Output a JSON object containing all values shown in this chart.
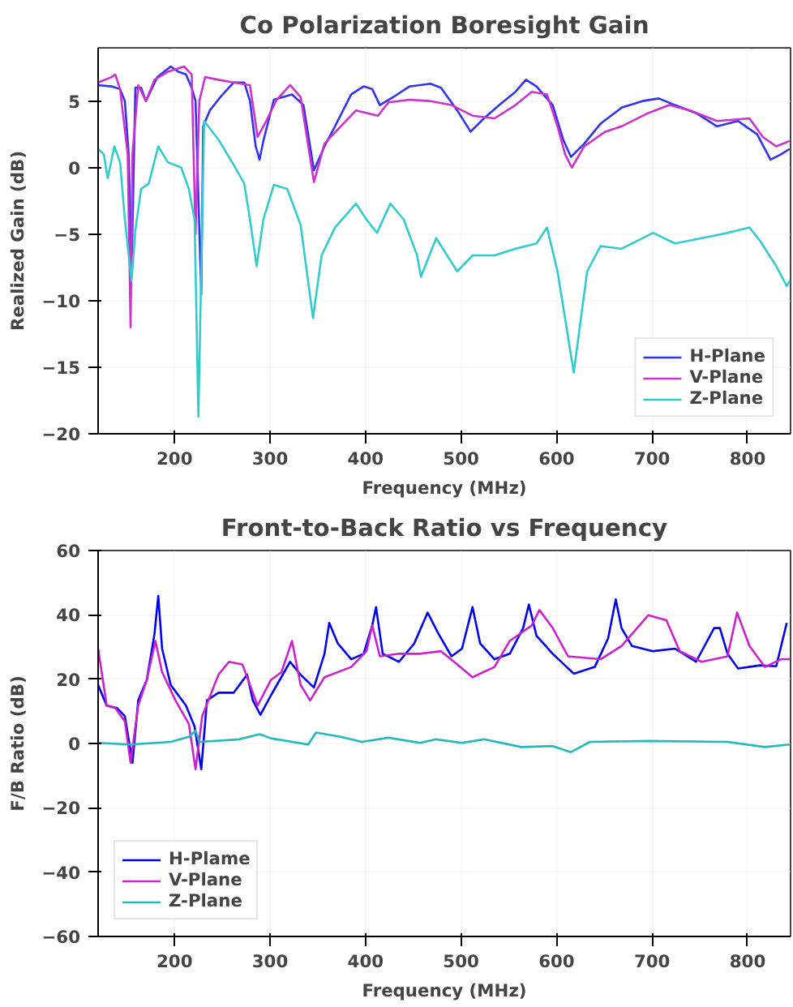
{
  "chart_data": [
    {
      "type": "line",
      "title": "Co Polarization Boresight Gain",
      "xlabel": "Frequency (MHz)",
      "ylabel": "Realized Gain (dB)",
      "xlim": [
        120,
        845
      ],
      "ylim": [
        -20,
        9
      ],
      "xticks": [
        200,
        300,
        400,
        500,
        600,
        700,
        800
      ],
      "yticks": [
        -20,
        -15,
        -10,
        -5,
        0,
        5
      ],
      "grid": true,
      "legend": "bottom right",
      "series": [
        {
          "name": "H-Plane",
          "color": "#3333ee",
          "x": [
            120,
            134,
            143,
            148,
            152,
            155,
            159,
            165,
            170,
            182,
            196,
            204,
            212,
            218,
            222,
            228,
            230,
            237,
            248,
            262,
            273,
            279,
            285,
            289,
            293,
            304,
            323,
            335,
            346,
            357,
            368,
            385,
            398,
            407,
            415,
            429,
            446,
            468,
            479,
            496,
            510,
            524,
            540,
            557,
            568,
            579,
            596,
            607,
            615,
            629,
            646,
            668,
            690,
            707,
            724,
            746,
            768,
            790,
            810,
            824,
            835,
            844
          ],
          "values": [
            6.2,
            6.1,
            5.9,
            5.0,
            1.0,
            -8.0,
            6.0,
            6.0,
            5.0,
            6.8,
            7.6,
            7.2,
            7.0,
            6.0,
            5.0,
            -9.5,
            3.1,
            4.3,
            5.3,
            6.4,
            6.4,
            5.0,
            1.6,
            0.6,
            2.0,
            5.1,
            5.5,
            4.7,
            -0.2,
            1.6,
            3.1,
            5.5,
            6.1,
            5.9,
            4.7,
            5.3,
            6.1,
            6.3,
            6.0,
            4.3,
            2.7,
            3.7,
            4.7,
            5.7,
            6.6,
            6.1,
            4.7,
            2.1,
            0.8,
            1.8,
            3.3,
            4.5,
            5.0,
            5.2,
            4.7,
            4.1,
            3.1,
            3.5,
            2.5,
            0.6,
            1.0,
            1.4
          ]
        },
        {
          "name": "V-Plane",
          "color": "#cc33cc",
          "x": [
            120,
            134,
            138,
            143,
            151,
            154,
            156,
            162,
            170,
            179,
            193,
            210,
            218,
            222,
            226,
            232,
            246,
            262,
            279,
            287,
            296,
            307,
            321,
            332,
            346,
            357,
            374,
            390,
            413,
            424,
            446,
            468,
            490,
            512,
            535,
            557,
            574,
            590,
            601,
            609,
            616,
            629,
            651,
            668,
            696,
            718,
            740,
            768,
            802,
            816,
            830,
            844
          ],
          "values": [
            6.4,
            6.8,
            7.0,
            5.9,
            1.0,
            -12.0,
            1.0,
            6.2,
            5.0,
            6.6,
            7.2,
            7.6,
            7.0,
            -5.0,
            5.0,
            6.8,
            6.6,
            6.4,
            6.2,
            2.3,
            3.5,
            5.1,
            6.2,
            5.3,
            -1.1,
            1.8,
            3.1,
            4.3,
            3.9,
            4.9,
            5.1,
            5.0,
            4.7,
            3.9,
            3.7,
            4.7,
            5.7,
            5.5,
            3.1,
            1.0,
            0.0,
            1.6,
            2.7,
            3.1,
            4.1,
            4.7,
            4.3,
            3.5,
            3.7,
            2.3,
            1.6,
            2.0
          ]
        },
        {
          "name": "Z-Plane",
          "color": "#33cccc",
          "x": [
            120,
            126,
            130,
            137,
            143,
            148,
            155,
            159,
            165,
            173,
            183,
            193,
            207,
            215,
            221,
            225,
            231,
            246,
            262,
            273,
            279,
            286,
            293,
            304,
            318,
            332,
            340,
            345,
            354,
            368,
            390,
            401,
            412,
            426,
            440,
            454,
            458,
            474,
            496,
            512,
            535,
            557,
            579,
            590,
            601,
            618,
            632,
            646,
            668,
            701,
            724,
            752,
            779,
            802,
            813,
            830,
            841,
            844
          ],
          "values": [
            1.4,
            1.0,
            -0.8,
            1.6,
            0.4,
            -3.9,
            -8.5,
            -4.7,
            -1.6,
            -1.2,
            1.6,
            0.4,
            0.0,
            -1.6,
            -3.9,
            -18.7,
            3.5,
            2.1,
            0.2,
            -1.2,
            -3.9,
            -7.4,
            -3.9,
            -1.3,
            -1.6,
            -4.3,
            -8.6,
            -11.3,
            -6.6,
            -4.5,
            -2.7,
            -3.9,
            -4.9,
            -2.7,
            -3.9,
            -6.6,
            -8.2,
            -5.3,
            -7.8,
            -6.6,
            -6.6,
            -6.1,
            -5.7,
            -4.5,
            -7.8,
            -15.4,
            -7.8,
            -5.9,
            -6.1,
            -4.9,
            -5.7,
            -5.3,
            -4.9,
            -4.5,
            -5.5,
            -7.4,
            -8.9,
            -8.5
          ]
        }
      ]
    },
    {
      "type": "line",
      "title": "Front-to-Back Ratio vs Frequency",
      "xlabel": "Frequency (MHz)",
      "ylabel": "F/B Ratio (dB)",
      "xlim": [
        120,
        845
      ],
      "ylim": [
        -60,
        60
      ],
      "xticks": [
        200,
        300,
        400,
        500,
        600,
        700,
        800
      ],
      "yticks": [
        -60,
        -40,
        -20,
        0,
        20,
        40,
        60
      ],
      "grid": true,
      "legend": "bottom left",
      "series": [
        {
          "name": "H-Plame",
          "color": "#0000ee",
          "x": [
            120,
            129,
            140,
            148,
            156,
            162,
            171,
            179,
            183,
            187,
            196,
            212,
            221,
            228,
            234,
            246,
            262,
            276,
            282,
            290,
            301,
            321,
            332,
            346,
            357,
            362,
            371,
            385,
            398,
            407,
            411,
            418,
            435,
            451,
            465,
            476,
            490,
            501,
            512,
            520,
            535,
            551,
            565,
            571,
            579,
            596,
            618,
            640,
            654,
            662,
            668,
            679,
            701,
            724,
            746,
            765,
            771,
            779,
            790,
            813,
            830,
            841
          ],
          "values": [
            18.2,
            11.8,
            11.0,
            8.5,
            -6.0,
            13.4,
            19.8,
            34.0,
            45.9,
            29.5,
            18.2,
            11.8,
            5.3,
            -8.0,
            13.4,
            15.8,
            15.8,
            21.4,
            13.4,
            8.9,
            15.0,
            25.4,
            21.4,
            17.4,
            27.9,
            37.5,
            31.1,
            26.2,
            27.9,
            36.7,
            42.4,
            27.9,
            25.4,
            31.1,
            40.7,
            34.3,
            27.1,
            29.5,
            42.4,
            31.1,
            26.2,
            27.9,
            35.9,
            43.2,
            33.5,
            27.9,
            21.7,
            23.8,
            32.7,
            44.8,
            35.9,
            30.3,
            28.7,
            29.5,
            25.4,
            35.9,
            35.9,
            27.9,
            23.3,
            24.3,
            24.0,
            37.5
          ]
        },
        {
          "name": "V-Plane",
          "color": "#cc22cc",
          "x": [
            120,
            129,
            138,
            148,
            154,
            162,
            171,
            180,
            187,
            201,
            215,
            222,
            229,
            246,
            257,
            271,
            287,
            301,
            312,
            323,
            332,
            342,
            357,
            385,
            401,
            407,
            415,
            435,
            457,
            479,
            496,
            512,
            535,
            551,
            574,
            582,
            596,
            612,
            646,
            668,
            696,
            715,
            729,
            752,
            779,
            789,
            802,
            818,
            835,
            844
          ],
          "values": [
            29.5,
            11.8,
            11.0,
            6.9,
            -6.0,
            11.8,
            19.8,
            31.9,
            22.2,
            13.4,
            6.1,
            -8.0,
            8.5,
            21.4,
            25.4,
            24.6,
            11.8,
            19.8,
            22.2,
            31.9,
            18.2,
            13.4,
            20.6,
            23.8,
            28.7,
            36.7,
            27.1,
            27.9,
            27.9,
            28.7,
            24.6,
            20.6,
            23.8,
            31.9,
            36.7,
            41.5,
            35.9,
            27.1,
            26.2,
            30.3,
            39.9,
            38.3,
            28.7,
            25.4,
            27.1,
            40.7,
            30.3,
            23.8,
            26.2,
            26.2
          ]
        },
        {
          "name": "Z-Plane",
          "color": "#22bbbb",
          "x": [
            120,
            154,
            196,
            215,
            222,
            226,
            268,
            289,
            301,
            340,
            348,
            374,
            396,
            424,
            457,
            474,
            501,
            524,
            563,
            596,
            615,
            635,
            696,
            779,
            818,
            844
          ],
          "values": [
            0.2,
            -0.3,
            0.5,
            2.1,
            4.0,
            0.5,
            1.3,
            2.9,
            1.6,
            -0.3,
            3.4,
            2.1,
            0.5,
            1.8,
            0.2,
            1.3,
            0.2,
            1.3,
            -1.1,
            -0.8,
            -2.7,
            0.5,
            0.8,
            0.5,
            -1.1,
            -0.3
          ]
        }
      ]
    }
  ]
}
